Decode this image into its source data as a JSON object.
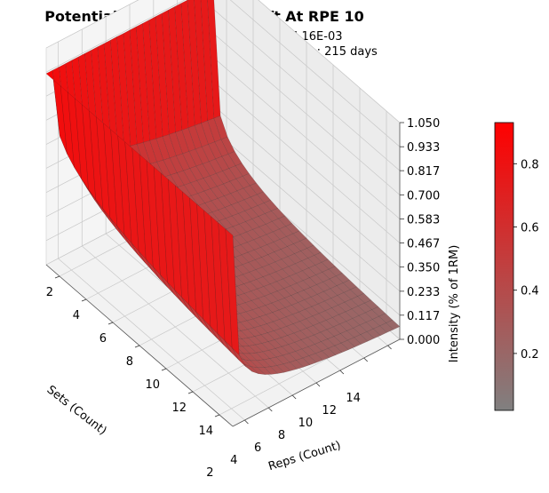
{
  "chart_data": {
    "type": "surface3d",
    "title": "Potential Surface for Deadlift At RPE 10",
    "subtitle_line1": "I(1,1)=0.9256553377332375 MSE: 6.16E-03",
    "subtitle_line2": "Date: 05/06/2023  Window: 2 days  Time frame: 215 days",
    "x_axis": {
      "label": "Reps (Count)",
      "range": [
        1,
        15
      ],
      "ticks": [
        "2",
        "4",
        "6",
        "8",
        "10",
        "12",
        "14"
      ]
    },
    "y_axis": {
      "label": "Sets (Count)",
      "range": [
        1,
        15
      ],
      "ticks": [
        "2",
        "4",
        "6",
        "8",
        "10",
        "12",
        "14"
      ]
    },
    "z_axis": {
      "label": "Intensity (% of 1RM)",
      "range": [
        0,
        1.05
      ],
      "ticks": [
        "0.000",
        "0.117",
        "0.233",
        "0.350",
        "0.467",
        "0.583",
        "0.700",
        "0.817",
        "0.933",
        "1.050"
      ]
    },
    "colorbar": {
      "range": [
        0.02,
        0.93
      ],
      "ticks": [
        "0.2",
        "0.4",
        "0.6",
        "0.8"
      ],
      "tick_values": [
        0.2,
        0.4,
        0.6,
        0.8
      ],
      "color_low": "#808080",
      "color_high": "#ff0000"
    },
    "surface": {
      "peak_intensity": 0.9256553377332375,
      "min_intensity": 0.02,
      "face_color_high": "#ff0000",
      "face_color_low": "#808080",
      "edge_color": "#1a1a1a"
    },
    "grid": true
  }
}
